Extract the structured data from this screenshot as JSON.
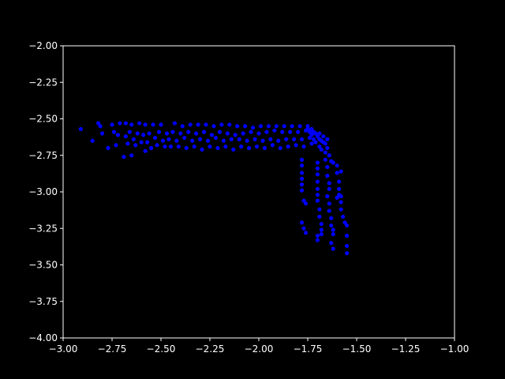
{
  "chart_data": {
    "type": "scatter",
    "title": "",
    "xlabel": "",
    "ylabel": "",
    "xlim": [
      -3.0,
      -1.0
    ],
    "ylim": [
      -4.0,
      -2.0
    ],
    "xticks": [
      "−3.00",
      "−2.75",
      "−2.50",
      "−2.25",
      "−2.00",
      "−1.75",
      "−1.50",
      "−1.25",
      "−1.00"
    ],
    "yticks": [
      "−2.00",
      "−2.25",
      "−2.50",
      "−2.75",
      "−3.00",
      "−3.25",
      "−3.50",
      "−3.75",
      "−4.00"
    ],
    "xtick_values": [
      -3.0,
      -2.75,
      -2.5,
      -2.25,
      -2.0,
      -1.75,
      -1.5,
      -1.25,
      -1.0
    ],
    "ytick_values": [
      -2.0,
      -2.25,
      -2.5,
      -2.75,
      -3.0,
      -3.25,
      -3.5,
      -3.75,
      -4.0
    ],
    "grid": false,
    "colors": {
      "background": "#000000",
      "axes": "#ffffff",
      "points": "#0000ff"
    },
    "series": [
      {
        "marker": "circle",
        "points": [
          [
            -2.91,
            -2.57
          ],
          [
            -2.85,
            -2.65
          ],
          [
            -2.82,
            -2.53
          ],
          [
            -2.81,
            -2.55
          ],
          [
            -2.8,
            -2.6
          ],
          [
            -2.77,
            -2.7
          ],
          [
            -2.75,
            -2.54
          ],
          [
            -2.74,
            -2.59
          ],
          [
            -2.73,
            -2.68
          ],
          [
            -2.72,
            -2.61
          ],
          [
            -2.71,
            -2.53
          ],
          [
            -2.69,
            -2.76
          ],
          [
            -2.68,
            -2.62
          ],
          [
            -2.68,
            -2.53
          ],
          [
            -2.67,
            -2.67
          ],
          [
            -2.66,
            -2.59
          ],
          [
            -2.65,
            -2.75
          ],
          [
            -2.65,
            -2.54
          ],
          [
            -2.64,
            -2.64
          ],
          [
            -2.63,
            -2.68
          ],
          [
            -2.62,
            -2.6
          ],
          [
            -2.61,
            -2.53
          ],
          [
            -2.6,
            -2.66
          ],
          [
            -2.59,
            -2.61
          ],
          [
            -2.58,
            -2.72
          ],
          [
            -2.58,
            -2.54
          ],
          [
            -2.57,
            -2.66
          ],
          [
            -2.56,
            -2.6
          ],
          [
            -2.55,
            -2.7
          ],
          [
            -2.54,
            -2.54
          ],
          [
            -2.53,
            -2.63
          ],
          [
            -2.52,
            -2.68
          ],
          [
            -2.51,
            -2.59
          ],
          [
            -2.5,
            -2.54
          ],
          [
            -2.49,
            -2.65
          ],
          [
            -2.48,
            -2.69
          ],
          [
            -2.47,
            -2.6
          ],
          [
            -2.46,
            -2.64
          ],
          [
            -2.45,
            -2.69
          ],
          [
            -2.44,
            -2.59
          ],
          [
            -2.43,
            -2.53
          ],
          [
            -2.42,
            -2.65
          ],
          [
            -2.41,
            -2.69
          ],
          [
            -2.4,
            -2.6
          ],
          [
            -2.39,
            -2.55
          ],
          [
            -2.38,
            -2.63
          ],
          [
            -2.37,
            -2.7
          ],
          [
            -2.36,
            -2.59
          ],
          [
            -2.35,
            -2.54
          ],
          [
            -2.34,
            -2.65
          ],
          [
            -2.33,
            -2.69
          ],
          [
            -2.32,
            -2.6
          ],
          [
            -2.31,
            -2.54
          ],
          [
            -2.3,
            -2.64
          ],
          [
            -2.29,
            -2.71
          ],
          [
            -2.28,
            -2.59
          ],
          [
            -2.27,
            -2.54
          ],
          [
            -2.26,
            -2.65
          ],
          [
            -2.25,
            -2.69
          ],
          [
            -2.24,
            -2.61
          ],
          [
            -2.23,
            -2.55
          ],
          [
            -2.22,
            -2.63
          ],
          [
            -2.21,
            -2.7
          ],
          [
            -2.2,
            -2.59
          ],
          [
            -2.19,
            -2.54
          ],
          [
            -2.18,
            -2.65
          ],
          [
            -2.17,
            -2.69
          ],
          [
            -2.16,
            -2.6
          ],
          [
            -2.15,
            -2.54
          ],
          [
            -2.14,
            -2.64
          ],
          [
            -2.13,
            -2.71
          ],
          [
            -2.12,
            -2.61
          ],
          [
            -2.11,
            -2.55
          ],
          [
            -2.1,
            -2.64
          ],
          [
            -2.09,
            -2.69
          ],
          [
            -2.08,
            -2.6
          ],
          [
            -2.07,
            -2.55
          ],
          [
            -2.06,
            -2.65
          ],
          [
            -2.05,
            -2.7
          ],
          [
            -2.04,
            -2.59
          ],
          [
            -2.03,
            -2.56
          ],
          [
            -2.02,
            -2.64
          ],
          [
            -2.01,
            -2.69
          ],
          [
            -2.0,
            -2.6
          ],
          [
            -1.99,
            -2.55
          ],
          [
            -1.98,
            -2.65
          ],
          [
            -1.97,
            -2.7
          ],
          [
            -1.96,
            -2.59
          ],
          [
            -1.95,
            -2.55
          ],
          [
            -1.94,
            -2.64
          ],
          [
            -1.93,
            -2.68
          ],
          [
            -1.92,
            -2.58
          ],
          [
            -1.91,
            -2.55
          ],
          [
            -1.9,
            -2.65
          ],
          [
            -1.89,
            -2.7
          ],
          [
            -1.88,
            -2.59
          ],
          [
            -1.87,
            -2.55
          ],
          [
            -1.86,
            -2.64
          ],
          [
            -1.85,
            -2.69
          ],
          [
            -1.84,
            -2.59
          ],
          [
            -1.83,
            -2.55
          ],
          [
            -1.82,
            -2.64
          ],
          [
            -1.81,
            -2.68
          ],
          [
            -1.8,
            -2.59
          ],
          [
            -1.79,
            -2.55
          ],
          [
            -1.78,
            -2.64
          ],
          [
            -1.77,
            -2.69
          ],
          [
            -1.76,
            -2.58
          ],
          [
            -1.75,
            -2.55
          ],
          [
            -1.74,
            -2.63
          ],
          [
            -1.73,
            -2.67
          ],
          [
            -1.72,
            -2.59
          ],
          [
            -1.71,
            -2.6
          ],
          [
            -1.7,
            -2.62
          ],
          [
            -1.69,
            -2.64
          ],
          [
            -1.68,
            -2.65
          ],
          [
            -1.67,
            -2.66
          ],
          [
            -1.66,
            -2.67
          ],
          [
            -1.65,
            -2.7
          ],
          [
            -1.64,
            -2.75
          ],
          [
            -1.63,
            -2.79
          ],
          [
            -1.62,
            -2.8
          ],
          [
            -1.6,
            -2.82
          ],
          [
            -1.58,
            -2.86
          ],
          [
            -1.78,
            -2.78
          ],
          [
            -1.78,
            -2.82
          ],
          [
            -1.78,
            -2.87
          ],
          [
            -1.78,
            -2.91
          ],
          [
            -1.78,
            -2.95
          ],
          [
            -1.78,
            -2.99
          ],
          [
            -1.77,
            -3.06
          ],
          [
            -1.76,
            -3.08
          ],
          [
            -1.78,
            -3.21
          ],
          [
            -1.77,
            -3.25
          ],
          [
            -1.76,
            -3.28
          ],
          [
            -1.7,
            -2.8
          ],
          [
            -1.7,
            -2.84
          ],
          [
            -1.7,
            -2.88
          ],
          [
            -1.7,
            -2.93
          ],
          [
            -1.7,
            -2.98
          ],
          [
            -1.7,
            -3.02
          ],
          [
            -1.7,
            -3.06
          ],
          [
            -1.69,
            -3.12
          ],
          [
            -1.69,
            -3.17
          ],
          [
            -1.68,
            -3.22
          ],
          [
            -1.68,
            -3.26
          ],
          [
            -1.7,
            -3.3
          ],
          [
            -1.7,
            -3.33
          ],
          [
            -1.68,
            -3.29
          ],
          [
            -1.66,
            -2.78
          ],
          [
            -1.65,
            -2.83
          ],
          [
            -1.65,
            -2.89
          ],
          [
            -1.64,
            -2.94
          ],
          [
            -1.64,
            -2.98
          ],
          [
            -1.65,
            -3.03
          ],
          [
            -1.64,
            -3.08
          ],
          [
            -1.64,
            -3.13
          ],
          [
            -1.63,
            -3.18
          ],
          [
            -1.63,
            -3.23
          ],
          [
            -1.62,
            -3.26
          ],
          [
            -1.62,
            -3.29
          ],
          [
            -1.63,
            -3.35
          ],
          [
            -1.62,
            -3.39
          ],
          [
            -1.6,
            -2.87
          ],
          [
            -1.59,
            -2.93
          ],
          [
            -1.59,
            -2.98
          ],
          [
            -1.59,
            -3.02
          ],
          [
            -1.58,
            -3.07
          ],
          [
            -1.58,
            -3.12
          ],
          [
            -1.57,
            -3.17
          ],
          [
            -1.56,
            -3.21
          ],
          [
            -1.55,
            -3.23
          ],
          [
            -1.55,
            -3.3
          ],
          [
            -1.55,
            -3.37
          ],
          [
            -1.55,
            -3.42
          ],
          [
            -1.58,
            -3.03
          ],
          [
            -1.6,
            -3.04
          ],
          [
            -1.74,
            -2.59
          ],
          [
            -1.73,
            -2.61
          ],
          [
            -1.72,
            -2.64
          ],
          [
            -1.71,
            -2.66
          ],
          [
            -1.69,
            -2.69
          ],
          [
            -1.68,
            -2.71
          ],
          [
            -1.66,
            -2.73
          ],
          [
            -1.65,
            -2.64
          ],
          [
            -1.67,
            -2.62
          ],
          [
            -1.69,
            -2.6
          ],
          [
            -1.73,
            -2.57
          ],
          [
            -1.75,
            -2.57
          ]
        ]
      }
    ]
  }
}
